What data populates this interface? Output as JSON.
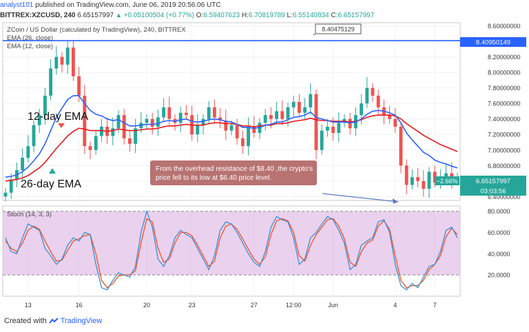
{
  "header": {
    "author": "analyst101",
    "published": "published on TradingView.com, June 06, 2019 20:56:06 UTC"
  },
  "ohlc": {
    "symbol": "BITTREX:XZCUSD, 240",
    "last": "6.65157997",
    "change_arrow": "▲",
    "change": "+0.05100504 (+0.77%)",
    "o_label": "O:",
    "o": "6.59407623",
    "h_label": "H:",
    "h": "6.70819789",
    "l_label": "L:",
    "l": "6.55140834",
    "c_label": "C:",
    "c": "6.65157997"
  },
  "price_pane": {
    "title": "ZCoin / US Dollar (calculated by TradingView), 240, BITTREX",
    "ema26_label": "EMA (26, close)",
    "ema12_label": "EMA (12, close)",
    "resistance_value": "8.40950149",
    "crosshair_value": "8.40475129",
    "last_price_label": "6.65157997",
    "pct_change_label": "−2.66%",
    "countdown": "03:03:56",
    "annotation_12": "12-day EMA",
    "annotation_26": "26-day EMA",
    "note": "From the overhead resistance of $8.40 ,the  crypto's price  fell to its low at $6.40 price level."
  },
  "stoch_pane": {
    "title": "Stoch (14, 3, 3)"
  },
  "colors": {
    "ema12": "#2962ff",
    "ema26": "#e5171b",
    "candle_up": "#26a69a",
    "candle_down": "#ef5350",
    "stoch_k": "#3a8fd8",
    "stoch_d": "#f4511e",
    "stoch_band": "#e1bee7",
    "resistance": "#2962ff",
    "note_box": "#b46a6a"
  },
  "footer": {
    "created_with": "Created with",
    "brand": "TradingView"
  },
  "chart_data": [
    {
      "type": "candlestick",
      "title": "ZCoin / US Dollar (calculated by TradingView), 240, BITTREX",
      "x_ticks": [
        "13",
        "16",
        "20",
        "23",
        "27",
        "12:00",
        "Jun",
        "4",
        "7"
      ],
      "y_ticks": [
        "8.60000000",
        "8.40000000",
        "8.20000000",
        "8.00000000",
        "7.80000000",
        "7.60000000",
        "7.40000000",
        "7.20000000",
        "7.00000000",
        "6.80000000",
        "6.60000000",
        "6.40000000"
      ],
      "ylim": [
        6.35,
        8.64
      ],
      "resistance_level": 8.40950149,
      "close": [
        6.45,
        6.62,
        6.74,
        6.9,
        7.05,
        7.32,
        7.45,
        7.7,
        8.05,
        8.2,
        8.1,
        8.32,
        7.95,
        7.7,
        7.05,
        7.0,
        7.18,
        7.3,
        7.18,
        7.28,
        7.45,
        7.15,
        7.08,
        7.28,
        7.35,
        7.4,
        7.3,
        7.42,
        7.55,
        7.4,
        7.35,
        7.48,
        7.45,
        7.2,
        7.32,
        7.4,
        7.55,
        7.42,
        7.38,
        7.25,
        7.32,
        7.15,
        7.05,
        7.3,
        7.22,
        7.35,
        7.45,
        7.4,
        7.5,
        7.4,
        7.55,
        7.62,
        7.48,
        7.55,
        7.72,
        7.0,
        7.25,
        7.3,
        7.22,
        7.35,
        7.4,
        7.28,
        7.45,
        7.6,
        7.8,
        7.7,
        7.55,
        7.45,
        7.4,
        7.3,
        6.8,
        6.55,
        6.65,
        6.6,
        6.5,
        6.72,
        6.58,
        6.65,
        6.7,
        6.62,
        6.65
      ],
      "ema12": [
        6.65,
        6.66,
        6.68,
        6.72,
        6.78,
        6.86,
        6.95,
        7.08,
        7.25,
        7.42,
        7.54,
        7.65,
        7.7,
        7.7,
        7.6,
        7.51,
        7.46,
        7.44,
        7.4,
        7.38,
        7.39,
        7.35,
        7.31,
        7.31,
        7.32,
        7.33,
        7.33,
        7.34,
        7.37,
        7.38,
        7.37,
        7.39,
        7.4,
        7.37,
        7.36,
        7.37,
        7.39,
        7.4,
        7.39,
        7.37,
        7.36,
        7.33,
        7.29,
        7.29,
        7.28,
        7.29,
        7.32,
        7.33,
        7.36,
        7.36,
        7.39,
        7.42,
        7.43,
        7.45,
        7.49,
        7.42,
        7.4,
        7.38,
        7.36,
        7.36,
        7.36,
        7.35,
        7.36,
        7.4,
        7.46,
        7.5,
        7.51,
        7.5,
        7.48,
        7.45,
        7.35,
        7.22,
        7.13,
        7.05,
        6.97,
        6.93,
        6.87,
        6.84,
        6.82,
        6.79,
        6.77
      ],
      "ema26": [
        6.6,
        6.61,
        6.62,
        6.64,
        6.67,
        6.72,
        6.77,
        6.84,
        6.93,
        7.02,
        7.1,
        7.18,
        7.24,
        7.28,
        7.27,
        7.25,
        7.25,
        7.25,
        7.24,
        7.25,
        7.27,
        7.26,
        7.25,
        7.25,
        7.26,
        7.27,
        7.27,
        7.28,
        7.3,
        7.31,
        7.31,
        7.32,
        7.33,
        7.32,
        7.32,
        7.32,
        7.34,
        7.35,
        7.35,
        7.34,
        7.34,
        7.33,
        7.31,
        7.31,
        7.3,
        7.31,
        7.32,
        7.32,
        7.34,
        7.34,
        7.35,
        7.37,
        7.38,
        7.39,
        7.41,
        7.39,
        7.38,
        7.38,
        7.37,
        7.37,
        7.37,
        7.36,
        7.37,
        7.39,
        7.42,
        7.44,
        7.45,
        7.45,
        7.45,
        7.44,
        7.4,
        7.34,
        7.29,
        7.24,
        7.19,
        7.15,
        7.11,
        7.07,
        7.04,
        7.01,
        6.98
      ]
    },
    {
      "type": "line",
      "title": "Stoch (14, 3, 3)",
      "y_ticks": [
        "80.0000",
        "60.0000",
        "40.0000",
        "20.0000"
      ],
      "ylim": [
        0,
        85
      ],
      "bands": [
        20,
        80
      ],
      "series": [
        {
          "name": "%K",
          "values": [
            55,
            42,
            40,
            55,
            68,
            65,
            62,
            45,
            38,
            30,
            35,
            48,
            55,
            52,
            60,
            58,
            30,
            8,
            6,
            15,
            22,
            20,
            18,
            28,
            60,
            80,
            65,
            35,
            28,
            38,
            55,
            62,
            58,
            55,
            45,
            35,
            25,
            38,
            62,
            70,
            68,
            60,
            50,
            40,
            32,
            28,
            42,
            65,
            75,
            72,
            70,
            55,
            30,
            35,
            55,
            60,
            68,
            75,
            72,
            62,
            50,
            25,
            30,
            48,
            52,
            55,
            70,
            72,
            60,
            30,
            10,
            6,
            12,
            8,
            18,
            28,
            30,
            42,
            62,
            65,
            55
          ]
        },
        {
          "name": "%D",
          "values": [
            52,
            45,
            42,
            50,
            62,
            66,
            63,
            52,
            42,
            33,
            34,
            43,
            52,
            54,
            57,
            58,
            40,
            15,
            8,
            12,
            19,
            20,
            20,
            24,
            50,
            73,
            70,
            45,
            32,
            35,
            50,
            60,
            60,
            57,
            48,
            38,
            28,
            33,
            55,
            66,
            68,
            63,
            54,
            44,
            35,
            30,
            37,
            58,
            71,
            73,
            71,
            60,
            38,
            33,
            48,
            58,
            65,
            72,
            73,
            66,
            54,
            32,
            28,
            42,
            50,
            53,
            66,
            71,
            63,
            38,
            15,
            8,
            10,
            10,
            15,
            25,
            30,
            38,
            56,
            64,
            58
          ]
        }
      ]
    }
  ]
}
